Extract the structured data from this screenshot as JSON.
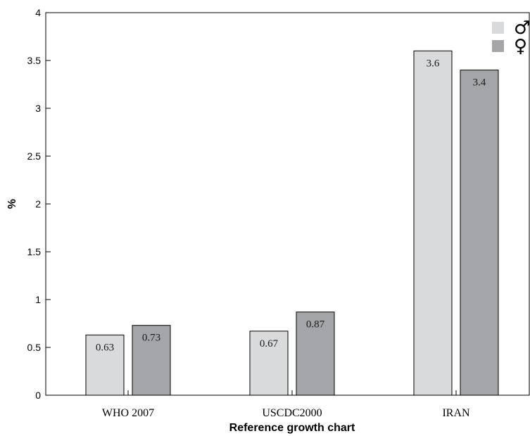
{
  "chart_data": {
    "type": "bar",
    "title": "",
    "xlabel": "Reference growth chart",
    "ylabel": "%",
    "categories": [
      "WHO 2007",
      "USCDC2000",
      "IRAN"
    ],
    "series": [
      {
        "name": "♂",
        "color": "#d9dadc",
        "values": [
          0.63,
          0.67,
          3.6
        ],
        "labels": [
          "0.63",
          "0.67",
          "3.6"
        ]
      },
      {
        "name": "♀",
        "color": "#a4a5a8",
        "values": [
          0.73,
          0.87,
          3.4
        ],
        "labels": [
          "0.73",
          "0.87",
          "3.4"
        ]
      }
    ],
    "ylim": [
      0,
      4
    ],
    "yticks": [
      0,
      0.5,
      1,
      1.5,
      2,
      2.5,
      3,
      3.5,
      4
    ],
    "ytick_labels": [
      "0",
      "0.5",
      "1",
      "1.5",
      "2",
      "2.5",
      "3",
      "3.5",
      "4"
    ],
    "grid": false,
    "legend_position": "top-right"
  }
}
